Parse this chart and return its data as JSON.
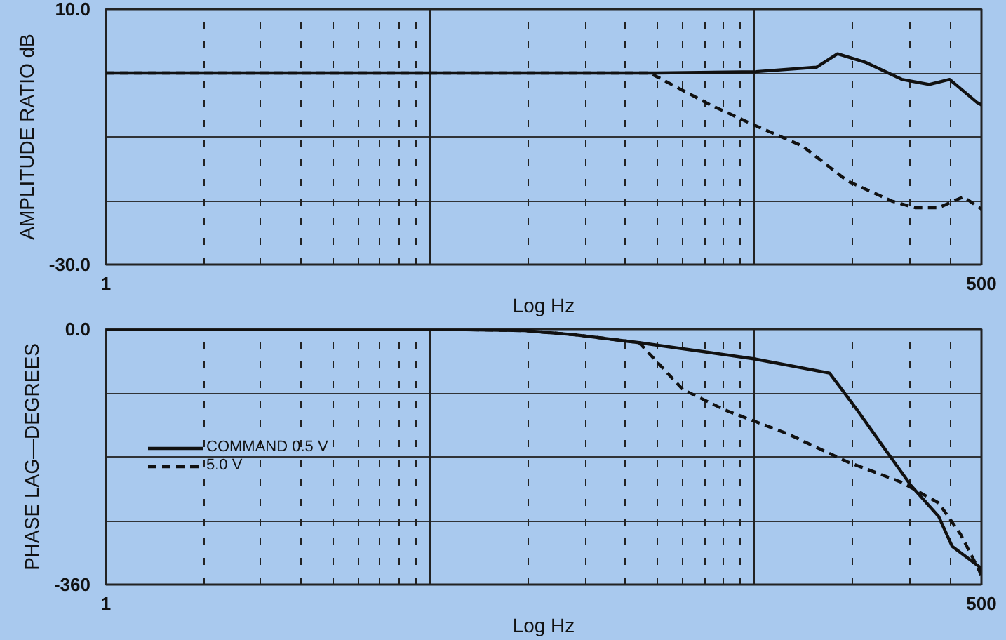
{
  "chart_data": [
    {
      "type": "line",
      "ylabel": "AMPLITUDE RATIO dB",
      "xlabel": "Log Hz",
      "log": "x",
      "grid": true,
      "legend": false,
      "xlim": [
        1,
        500
      ],
      "ylim": [
        -30,
        10
      ],
      "xticks": [
        {
          "value": 1,
          "label": "1"
        },
        {
          "value": 2,
          "label": null
        },
        {
          "value": 3,
          "label": null
        },
        {
          "value": 4,
          "label": null
        },
        {
          "value": 5,
          "label": null
        },
        {
          "value": 6,
          "label": null
        },
        {
          "value": 7,
          "label": null
        },
        {
          "value": 8,
          "label": null
        },
        {
          "value": 9,
          "label": null
        },
        {
          "value": 10,
          "label": null
        },
        {
          "value": 20,
          "label": null
        },
        {
          "value": 30,
          "label": null
        },
        {
          "value": 40,
          "label": null
        },
        {
          "value": 50,
          "label": null
        },
        {
          "value": 60,
          "label": null
        },
        {
          "value": 70,
          "label": null
        },
        {
          "value": 80,
          "label": null
        },
        {
          "value": 90,
          "label": null
        },
        {
          "value": 100,
          "label": null
        },
        {
          "value": 200,
          "label": null
        },
        {
          "value": 300,
          "label": null
        },
        {
          "value": 400,
          "label": null
        },
        {
          "value": 500,
          "label": "500"
        }
      ],
      "yticks": [
        {
          "value": 10,
          "label": "10.0"
        },
        {
          "value": 0,
          "label": null
        },
        {
          "value": -10,
          "label": null
        },
        {
          "value": -20,
          "label": null
        },
        {
          "value": -30,
          "label": "-30.0"
        }
      ],
      "series": [
        {
          "color": "#111111",
          "line_style": "solid",
          "x": [
            1,
            10,
            50,
            101,
            155,
            180,
            219,
            284,
            345,
            399,
            484,
            500
          ],
          "values": [
            0,
            0,
            0,
            0.2,
            0.9,
            3.0,
            1.7,
            -1.0,
            -1.8,
            -1.0,
            -4.6,
            -5.0
          ]
        },
        {
          "color": "#111111",
          "line_style": "dashed",
          "x": [
            1,
            10,
            47.5,
            73,
            100,
            140,
            193,
            266,
            313,
            369,
            440,
            493,
            500
          ],
          "values": [
            0,
            0,
            0,
            -5.0,
            -8.2,
            -11.4,
            -16.9,
            -20.1,
            -21.1,
            -21.1,
            -19.4,
            -21.1,
            -21.3
          ]
        }
      ]
    },
    {
      "type": "line",
      "ylabel": "PHASE LAG—DEGREES",
      "xlabel": "Log Hz",
      "log": "x",
      "grid": true,
      "legend": "left",
      "xlim": [
        1,
        500
      ],
      "ylim": [
        -360,
        0
      ],
      "xticks": [
        {
          "value": 1,
          "label": "1"
        },
        {
          "value": 2,
          "label": null
        },
        {
          "value": 3,
          "label": null
        },
        {
          "value": 4,
          "label": null
        },
        {
          "value": 5,
          "label": null
        },
        {
          "value": 6,
          "label": null
        },
        {
          "value": 7,
          "label": null
        },
        {
          "value": 8,
          "label": null
        },
        {
          "value": 9,
          "label": null
        },
        {
          "value": 10,
          "label": null
        },
        {
          "value": 20,
          "label": null
        },
        {
          "value": 30,
          "label": null
        },
        {
          "value": 40,
          "label": null
        },
        {
          "value": 50,
          "label": null
        },
        {
          "value": 60,
          "label": null
        },
        {
          "value": 70,
          "label": null
        },
        {
          "value": 80,
          "label": null
        },
        {
          "value": 90,
          "label": null
        },
        {
          "value": 100,
          "label": null
        },
        {
          "value": 200,
          "label": null
        },
        {
          "value": 300,
          "label": null
        },
        {
          "value": 400,
          "label": null
        },
        {
          "value": 500,
          "label": "500"
        }
      ],
      "yticks": [
        {
          "value": 0,
          "label": "0.0"
        },
        {
          "value": -90,
          "label": null
        },
        {
          "value": -180,
          "label": null
        },
        {
          "value": -270,
          "label": null
        },
        {
          "value": -360,
          "label": "-360"
        }
      ],
      "series": [
        {
          "name": "COMMAND 0.5 V",
          "color": "#111111",
          "line_style": "solid",
          "x": [
            1,
            10,
            19.5,
            28,
            44,
            100,
            170,
            180,
            207,
            251,
            304,
            369,
            406,
            493,
            500
          ],
          "values": [
            0,
            0,
            -2,
            -8,
            -19,
            -42,
            -62,
            -77,
            -114,
            -168,
            -221,
            -264,
            -306,
            -335,
            -340
          ]
        },
        {
          "name": "5.0 V",
          "color": "#111111",
          "line_style": "dashed",
          "x": [
            1,
            10,
            19.5,
            28,
            44,
            60,
            81,
            127,
            193,
            284,
            369,
            431,
            493,
            500
          ],
          "values": [
            0,
            0,
            -2,
            -8,
            -19,
            -85,
            -114,
            -148,
            -187,
            -216,
            -245,
            -289,
            -341,
            -350
          ]
        }
      ]
    }
  ]
}
